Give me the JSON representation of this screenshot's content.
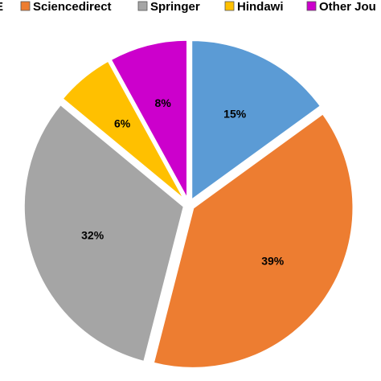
{
  "chart_data": {
    "type": "pie",
    "legend_position": "top",
    "slices": [
      {
        "name": "IEEE",
        "legend_text": "E",
        "value": 15,
        "label": "15%",
        "color": "#5B9BD5"
      },
      {
        "name": "Sciencedirect",
        "legend_text": "Sciencedirect",
        "value": 39,
        "label": "39%",
        "color": "#ED7D31"
      },
      {
        "name": "Springer",
        "legend_text": "Springer",
        "value": 32,
        "label": "32%",
        "color": "#A5A5A5"
      },
      {
        "name": "Hindawi",
        "legend_text": "Hindawi",
        "value": 6,
        "label": "6%",
        "color": "#FFC000"
      },
      {
        "name": "Other Journals",
        "legend_text": "Other Jou",
        "value": 8,
        "label": "8%",
        "color": "#CC00CC"
      }
    ]
  }
}
